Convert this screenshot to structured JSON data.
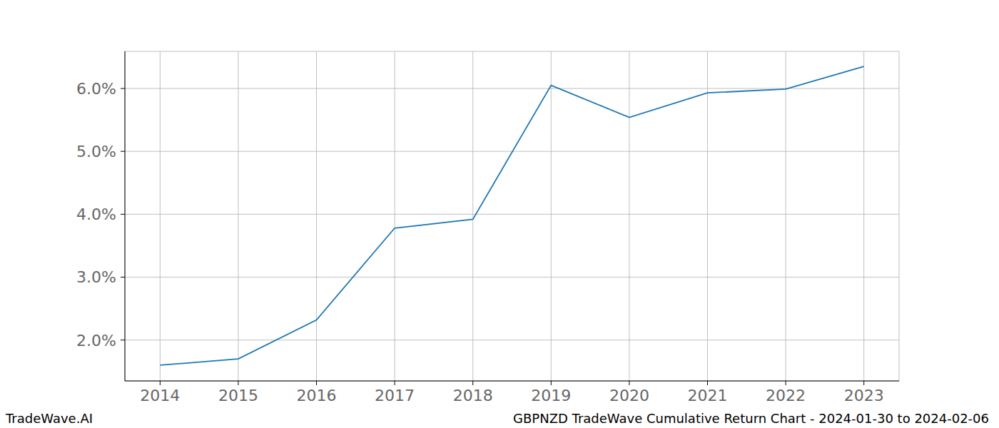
{
  "chart_data": {
    "type": "line",
    "title": "GBPNZD TradeWave Cumulative Return Chart - 2024-01-30 to 2024-02-06",
    "annotations": [
      "TradeWave.AI"
    ],
    "x": [
      2014,
      2015,
      2016,
      2017,
      2018,
      2019,
      2020,
      2021,
      2022,
      2023
    ],
    "series": [
      {
        "name": "GBPNZD",
        "color": "#1f77b4",
        "values": [
          1.6,
          1.7,
          2.32,
          3.78,
          3.92,
          6.05,
          5.54,
          5.93,
          5.99,
          6.35
        ]
      }
    ],
    "xlim": [
      2013.55,
      2023.45
    ],
    "xticks": [
      2014,
      2015,
      2016,
      2017,
      2018,
      2019,
      2020,
      2021,
      2022,
      2023
    ],
    "ylim": [
      1.35,
      6.59
    ],
    "yticks": [
      {
        "value": 2,
        "label": "2.0%"
      },
      {
        "value": 3,
        "label": "3.0%"
      },
      {
        "value": 4,
        "label": "4.0%"
      },
      {
        "value": 5,
        "label": "5.0%"
      },
      {
        "value": 6,
        "label": "6.0%"
      }
    ],
    "grid": true
  }
}
